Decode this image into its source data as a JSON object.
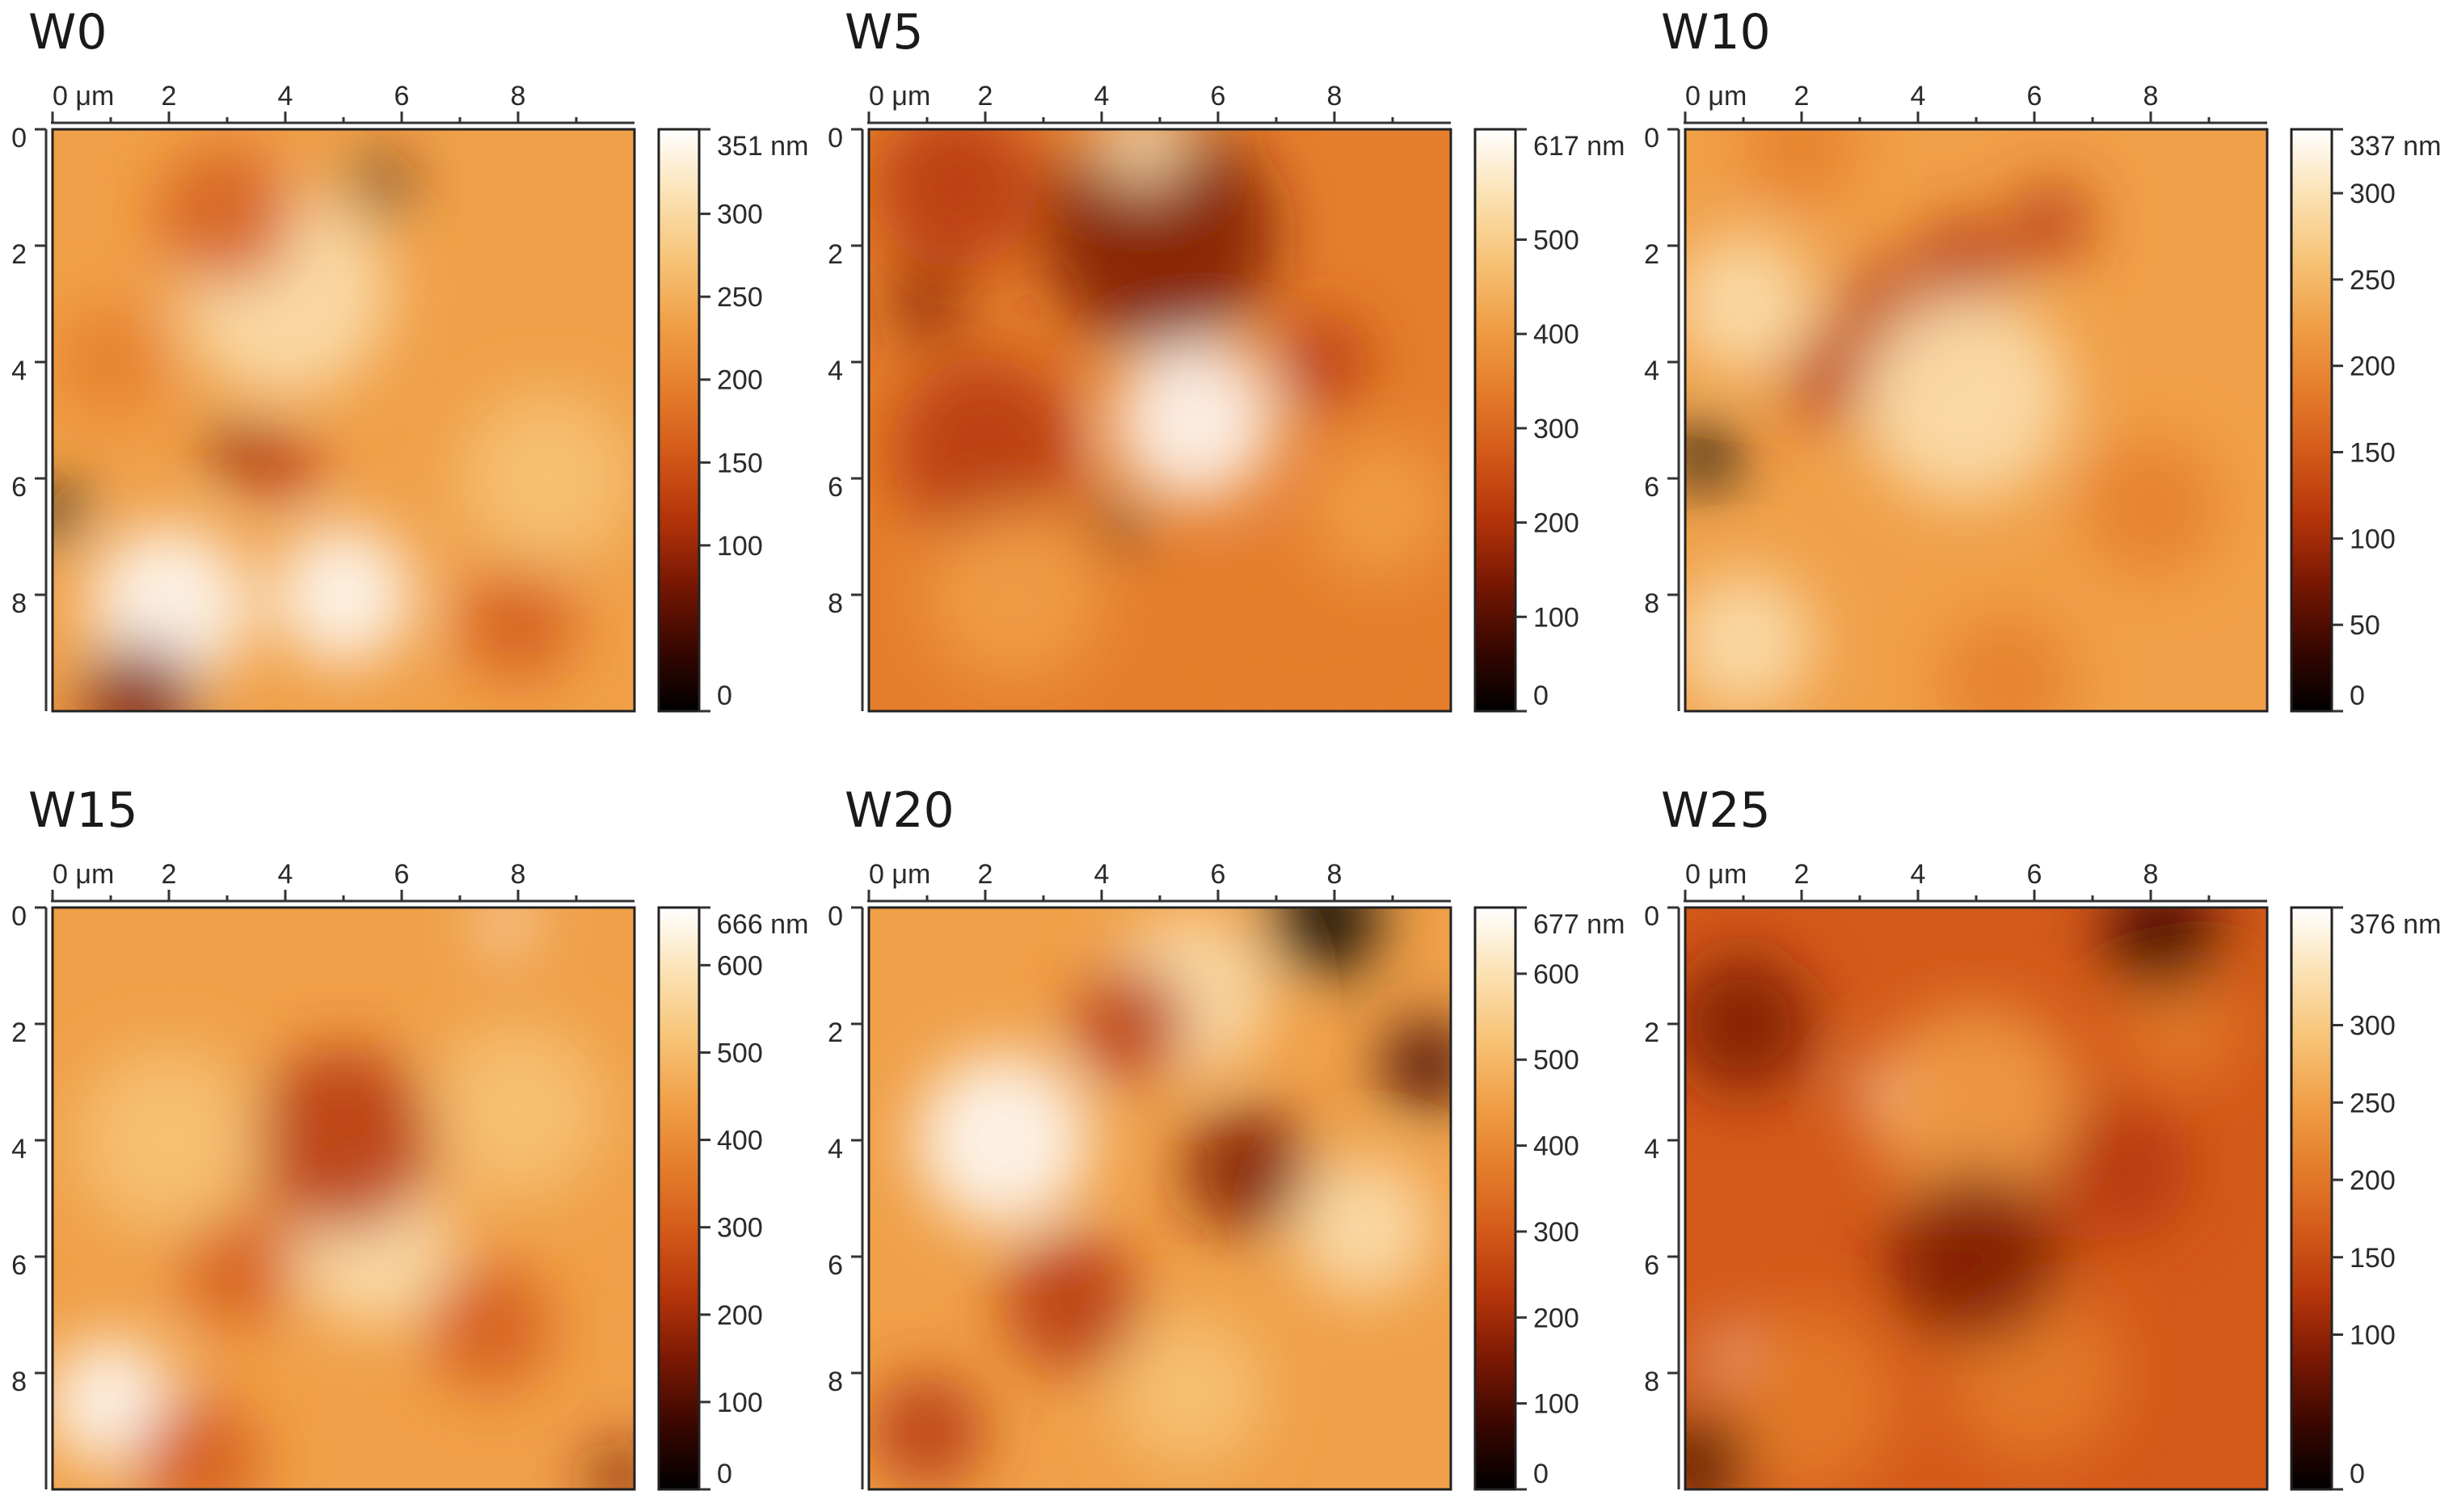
{
  "colors": {
    "afm_colormap": [
      "#000000",
      "#3a0700",
      "#7a1804",
      "#b5350a",
      "#d35a19",
      "#e57e2c",
      "#f0a048",
      "#f7c478",
      "#fbe2b4",
      "#ffffff"
    ]
  },
  "panels": [
    {
      "title": "W0",
      "x_ticks": [
        "0 μm",
        "2",
        "4",
        "6",
        "8"
      ],
      "y_ticks": [
        "0",
        "2",
        "4",
        "6",
        "8"
      ],
      "scale_ticks": [
        "351 nm",
        "300",
        "250",
        "200",
        "150",
        "100",
        "0"
      ],
      "scale_max": 351,
      "scale_tick_values": [
        351,
        300,
        250,
        200,
        150,
        100,
        0
      ],
      "base_level": 0.62,
      "features": [
        {
          "x": 4.0,
          "y": 2.8,
          "r": 1.8,
          "v": 0.9
        },
        {
          "x": 2.0,
          "y": 8.2,
          "r": 1.4,
          "v": 1.0
        },
        {
          "x": 5.0,
          "y": 8.0,
          "r": 1.2,
          "v": 0.95
        },
        {
          "x": 8.5,
          "y": 6.0,
          "r": 1.5,
          "v": 0.8
        },
        {
          "x": 5.6,
          "y": 1.0,
          "r": 0.5,
          "v": 0.15
        },
        {
          "x": 3.2,
          "y": 5.5,
          "r": 0.5,
          "v": 0.2
        },
        {
          "x": 4.0,
          "y": 5.8,
          "r": 0.6,
          "v": 0.3
        },
        {
          "x": 0.1,
          "y": 6.6,
          "r": 0.5,
          "v": 0.05
        },
        {
          "x": 1.5,
          "y": 9.8,
          "r": 1.0,
          "v": 0.2
        },
        {
          "x": 8.0,
          "y": 8.5,
          "r": 1.0,
          "v": 0.45
        },
        {
          "x": 3.0,
          "y": 1.5,
          "r": 1.2,
          "v": 0.45
        },
        {
          "x": 1.0,
          "y": 4.0,
          "r": 1.0,
          "v": 0.5
        }
      ]
    },
    {
      "title": "W5",
      "x_ticks": [
        "0 μm",
        "2",
        "4",
        "6",
        "8"
      ],
      "y_ticks": [
        "0",
        "2",
        "4",
        "6",
        "8"
      ],
      "scale_ticks": [
        "617 nm",
        "500",
        "400",
        "300",
        "200",
        "100",
        "0"
      ],
      "scale_max": 617,
      "scale_tick_values": [
        617,
        500,
        400,
        300,
        200,
        100,
        0
      ],
      "base_level": 0.58,
      "features": [
        {
          "x": 5.6,
          "y": 5.0,
          "r": 1.4,
          "v": 1.0
        },
        {
          "x": 5.0,
          "y": 1.8,
          "r": 2.0,
          "v": 0.25
        },
        {
          "x": 1.5,
          "y": 1.0,
          "r": 1.4,
          "v": 0.3
        },
        {
          "x": 2.0,
          "y": 5.5,
          "r": 1.6,
          "v": 0.35
        },
        {
          "x": 4.3,
          "y": 6.8,
          "r": 0.4,
          "v": 0.05
        },
        {
          "x": 1.0,
          "y": 3.0,
          "r": 0.6,
          "v": 0.2
        },
        {
          "x": 7.8,
          "y": 4.0,
          "r": 0.8,
          "v": 0.35
        },
        {
          "x": 7.5,
          "y": 8.5,
          "r": 1.4,
          "v": 0.5
        },
        {
          "x": 4.7,
          "y": 0.2,
          "r": 0.8,
          "v": 0.85
        },
        {
          "x": 2.5,
          "y": 8.0,
          "r": 1.5,
          "v": 0.72
        },
        {
          "x": 8.8,
          "y": 6.5,
          "r": 1.2,
          "v": 0.7
        }
      ]
    },
    {
      "title": "W10",
      "x_ticks": [
        "0 μm",
        "2",
        "4",
        "6",
        "8"
      ],
      "y_ticks": [
        "0",
        "2",
        "4",
        "6",
        "8"
      ],
      "scale_ticks": [
        "337 nm",
        "300",
        "250",
        "200",
        "150",
        "100",
        "50",
        "0"
      ],
      "scale_max": 337,
      "scale_tick_values": [
        337,
        300,
        250,
        200,
        150,
        100,
        50,
        0
      ],
      "base_level": 0.72,
      "features": [
        {
          "x": 3.5,
          "y": 3.2,
          "r": 0.9,
          "v": 0.3
        },
        {
          "x": 4.8,
          "y": 2.4,
          "r": 0.9,
          "v": 0.3
        },
        {
          "x": 6.3,
          "y": 1.6,
          "r": 0.7,
          "v": 0.35
        },
        {
          "x": 2.5,
          "y": 4.3,
          "r": 0.8,
          "v": 0.35
        },
        {
          "x": 0.3,
          "y": 5.6,
          "r": 0.6,
          "v": 0.05
        },
        {
          "x": 4.8,
          "y": 4.6,
          "r": 1.8,
          "v": 0.9
        },
        {
          "x": 1.0,
          "y": 3.0,
          "r": 1.2,
          "v": 0.88
        },
        {
          "x": 1.0,
          "y": 8.8,
          "r": 1.2,
          "v": 0.85
        },
        {
          "x": 8.0,
          "y": 6.5,
          "r": 1.2,
          "v": 0.55
        },
        {
          "x": 5.5,
          "y": 9.5,
          "r": 1.2,
          "v": 0.6
        },
        {
          "x": 2.0,
          "y": 0.3,
          "r": 1.0,
          "v": 0.6
        }
      ]
    },
    {
      "title": "W15",
      "x_ticks": [
        "0 μm",
        "2",
        "4",
        "6",
        "8"
      ],
      "y_ticks": [
        "0",
        "2",
        "4",
        "6",
        "8"
      ],
      "scale_ticks": [
        "666 nm",
        "600",
        "500",
        "400",
        "300",
        "200",
        "100",
        "0"
      ],
      "scale_max": 666,
      "scale_tick_values": [
        666,
        600,
        500,
        400,
        300,
        200,
        100,
        0
      ],
      "base_level": 0.66,
      "features": [
        {
          "x": 1.0,
          "y": 8.5,
          "r": 1.1,
          "v": 1.0
        },
        {
          "x": 7.8,
          "y": 0.3,
          "r": 0.4,
          "v": 1.0
        },
        {
          "x": 5.5,
          "y": 5.8,
          "r": 1.4,
          "v": 0.9
        },
        {
          "x": 5.0,
          "y": 4.0,
          "r": 1.6,
          "v": 0.38
        },
        {
          "x": 3.2,
          "y": 6.2,
          "r": 1.0,
          "v": 0.4
        },
        {
          "x": 7.5,
          "y": 7.2,
          "r": 1.1,
          "v": 0.42
        },
        {
          "x": 2.5,
          "y": 9.5,
          "r": 1.1,
          "v": 0.45
        },
        {
          "x": 9.8,
          "y": 9.8,
          "r": 0.6,
          "v": 0.2
        },
        {
          "x": 2.0,
          "y": 4.0,
          "r": 1.6,
          "v": 0.8
        },
        {
          "x": 8.0,
          "y": 3.5,
          "r": 1.5,
          "v": 0.75
        }
      ]
    },
    {
      "title": "W20",
      "x_ticks": [
        "0 μm",
        "2",
        "4",
        "6",
        "8"
      ],
      "y_ticks": [
        "0",
        "2",
        "4",
        "6",
        "8"
      ],
      "scale_ticks": [
        "677 nm",
        "600",
        "500",
        "400",
        "300",
        "200",
        "100",
        "0"
      ],
      "scale_max": 677,
      "scale_tick_values": [
        677,
        600,
        500,
        400,
        300,
        200,
        100,
        0
      ],
      "base_level": 0.62,
      "features": [
        {
          "x": 2.3,
          "y": 4.0,
          "r": 1.5,
          "v": 0.95
        },
        {
          "x": 5.5,
          "y": 1.5,
          "r": 1.4,
          "v": 0.88
        },
        {
          "x": 8.5,
          "y": 5.5,
          "r": 1.2,
          "v": 0.85
        },
        {
          "x": 7.8,
          "y": 0.2,
          "r": 1.0,
          "v": 0.05
        },
        {
          "x": 9.6,
          "y": 2.7,
          "r": 0.8,
          "v": 0.1
        },
        {
          "x": 6.5,
          "y": 4.5,
          "r": 1.1,
          "v": 0.25
        },
        {
          "x": 3.5,
          "y": 6.8,
          "r": 1.2,
          "v": 0.35
        },
        {
          "x": 4.5,
          "y": 2.0,
          "r": 1.0,
          "v": 0.35
        },
        {
          "x": 1.0,
          "y": 9.0,
          "r": 1.0,
          "v": 0.3
        },
        {
          "x": 5.5,
          "y": 8.3,
          "r": 1.3,
          "v": 0.8
        }
      ]
    },
    {
      "title": "W25",
      "x_ticks": [
        "0 μm",
        "2",
        "4",
        "6",
        "8"
      ],
      "y_ticks": [
        "0",
        "2",
        "4",
        "6",
        "8"
      ],
      "scale_ticks": [
        "376 nm",
        "300",
        "250",
        "200",
        "150",
        "100",
        "0"
      ],
      "scale_max": 376,
      "scale_tick_values": [
        376,
        300,
        250,
        200,
        150,
        100,
        0
      ],
      "base_level": 0.4,
      "features": [
        {
          "x": 3.5,
          "y": 3.2,
          "r": 0.5,
          "v": 0.95
        },
        {
          "x": 0.8,
          "y": 7.7,
          "r": 0.4,
          "v": 1.0
        },
        {
          "x": 5.0,
          "y": 3.5,
          "r": 1.8,
          "v": 0.65
        },
        {
          "x": 2.0,
          "y": 8.5,
          "r": 1.6,
          "v": 0.6
        },
        {
          "x": 6.0,
          "y": 8.0,
          "r": 1.5,
          "v": 0.6
        },
        {
          "x": 8.5,
          "y": 2.0,
          "r": 1.0,
          "v": 0.6
        },
        {
          "x": 1.0,
          "y": 2.0,
          "r": 1.2,
          "v": 0.2
        },
        {
          "x": 8.2,
          "y": 0.5,
          "r": 1.0,
          "v": 0.15
        },
        {
          "x": 5.0,
          "y": 6.0,
          "r": 1.5,
          "v": 0.22
        },
        {
          "x": 0.3,
          "y": 9.5,
          "r": 0.8,
          "v": 0.1
        },
        {
          "x": 7.5,
          "y": 4.5,
          "r": 1.2,
          "v": 0.35
        }
      ]
    }
  ]
}
